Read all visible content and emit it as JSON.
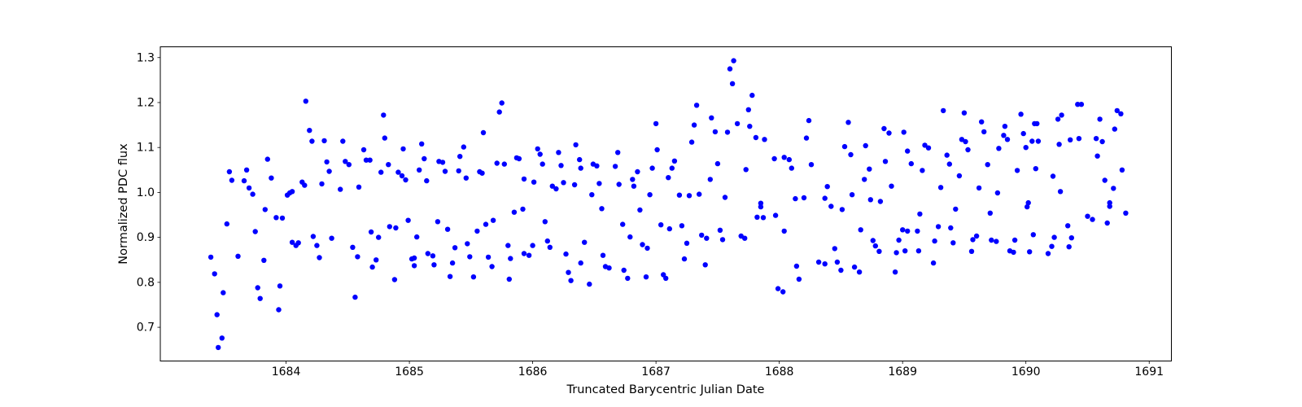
{
  "chart_data": {
    "type": "scatter",
    "title": "",
    "xlabel": "Truncated Barycentric Julian Date",
    "ylabel": "Normalized PDC flux",
    "xlim": [
      1682.98,
      1691.18
    ],
    "ylim": [
      0.625,
      1.324
    ],
    "x_ticks": [
      1684,
      1685,
      1686,
      1687,
      1688,
      1689,
      1690,
      1691
    ],
    "y_ticks": [
      0.7,
      0.8,
      0.9,
      1.0,
      1.1,
      1.2,
      1.3
    ],
    "grid": false,
    "legend": "none",
    "marker_color": "#0000ff",
    "marker_radius": 3.2,
    "points": [
      [
        1683.54,
        1.046
      ],
      [
        1683.56,
        1.027
      ],
      [
        1683.66,
        1.026
      ],
      [
        1683.68,
        1.05
      ],
      [
        1683.7,
        1.01
      ],
      [
        1683.73,
        0.996
      ],
      [
        1683.85,
        1.074
      ],
      [
        1683.88,
        1.032
      ],
      [
        1684.01,
        0.994
      ],
      [
        1684.03,
        0.999
      ],
      [
        1684.05,
        1.002
      ],
      [
        1684.13,
        1.023
      ],
      [
        1684.15,
        1.016
      ],
      [
        1684.16,
        1.203
      ],
      [
        1684.19,
        1.138
      ],
      [
        1684.21,
        1.114
      ],
      [
        1684.29,
        1.019
      ],
      [
        1684.31,
        1.115
      ],
      [
        1684.33,
        1.068
      ],
      [
        1684.35,
        1.047
      ],
      [
        1684.44,
        1.007
      ],
      [
        1684.46,
        1.114
      ],
      [
        1684.48,
        1.069
      ],
      [
        1684.51,
        1.062
      ],
      [
        1684.59,
        1.012
      ],
      [
        1684.63,
        1.095
      ],
      [
        1684.65,
        1.072
      ],
      [
        1684.68,
        1.072
      ],
      [
        1684.77,
        1.045
      ],
      [
        1684.79,
        1.172
      ],
      [
        1684.8,
        1.121
      ],
      [
        1684.83,
        1.062
      ],
      [
        1684.91,
        1.045
      ],
      [
        1684.94,
        1.037
      ],
      [
        1684.95,
        1.097
      ],
      [
        1684.97,
        1.028
      ],
      [
        1683.39,
        0.856
      ],
      [
        1683.42,
        0.819
      ],
      [
        1683.44,
        0.728
      ],
      [
        1683.45,
        0.655
      ],
      [
        1683.48,
        0.676
      ],
      [
        1683.49,
        0.777
      ],
      [
        1683.52,
        0.93
      ],
      [
        1683.61,
        0.858
      ],
      [
        1683.75,
        0.913
      ],
      [
        1683.77,
        0.788
      ],
      [
        1683.79,
        0.764
      ],
      [
        1683.82,
        0.849
      ],
      [
        1683.83,
        0.962
      ],
      [
        1683.92,
        0.944
      ],
      [
        1683.94,
        0.739
      ],
      [
        1683.95,
        0.792
      ],
      [
        1683.97,
        0.943
      ],
      [
        1684.05,
        0.889
      ],
      [
        1684.08,
        0.882
      ],
      [
        1684.1,
        0.888
      ],
      [
        1684.22,
        0.902
      ],
      [
        1684.25,
        0.882
      ],
      [
        1684.27,
        0.855
      ],
      [
        1684.37,
        0.898
      ],
      [
        1684.54,
        0.878
      ],
      [
        1684.56,
        0.767
      ],
      [
        1684.58,
        0.857
      ],
      [
        1684.69,
        0.912
      ],
      [
        1684.7,
        0.834
      ],
      [
        1684.73,
        0.85
      ],
      [
        1684.75,
        0.9
      ],
      [
        1684.84,
        0.924
      ],
      [
        1684.88,
        0.806
      ],
      [
        1684.89,
        0.921
      ],
      [
        1684.99,
        0.938
      ],
      [
        1685.02,
        0.852
      ],
      [
        1685.04,
        0.837
      ],
      [
        1685.08,
        1.05
      ],
      [
        1685.1,
        1.108
      ],
      [
        1685.12,
        1.075
      ],
      [
        1685.14,
        1.026
      ],
      [
        1685.24,
        1.069
      ],
      [
        1685.27,
        1.067
      ],
      [
        1685.29,
        1.047
      ],
      [
        1685.4,
        1.048
      ],
      [
        1685.41,
        1.08
      ],
      [
        1685.44,
        1.101
      ],
      [
        1685.46,
        1.032
      ],
      [
        1685.57,
        1.046
      ],
      [
        1685.59,
        1.043
      ],
      [
        1685.6,
        1.133
      ],
      [
        1685.71,
        1.065
      ],
      [
        1685.73,
        1.179
      ],
      [
        1685.75,
        1.199
      ],
      [
        1685.77,
        1.063
      ],
      [
        1685.87,
        1.077
      ],
      [
        1685.89,
        1.075
      ],
      [
        1685.93,
        1.03
      ],
      [
        1686.01,
        1.023
      ],
      [
        1686.04,
        1.097
      ],
      [
        1686.06,
        1.085
      ],
      [
        1686.08,
        1.063
      ],
      [
        1686.16,
        1.014
      ],
      [
        1686.19,
        1.008
      ],
      [
        1686.21,
        1.089
      ],
      [
        1686.23,
        1.06
      ],
      [
        1686.25,
        1.022
      ],
      [
        1686.34,
        1.017
      ],
      [
        1686.35,
        1.106
      ],
      [
        1686.38,
        1.073
      ],
      [
        1686.39,
        1.054
      ],
      [
        1686.48,
        0.995
      ],
      [
        1686.49,
        1.063
      ],
      [
        1686.52,
        1.059
      ],
      [
        1686.54,
        1.02
      ],
      [
        1686.67,
        1.058
      ],
      [
        1686.69,
        1.089
      ],
      [
        1686.7,
        1.018
      ],
      [
        1686.81,
        1.029
      ],
      [
        1686.82,
        1.014
      ],
      [
        1686.85,
        1.046
      ],
      [
        1686.95,
        0.995
      ],
      [
        1686.97,
        1.054
      ],
      [
        1687.0,
        1.153
      ],
      [
        1687.01,
        1.095
      ],
      [
        1685.04,
        0.854
      ],
      [
        1685.06,
        0.901
      ],
      [
        1685.15,
        0.864
      ],
      [
        1685.19,
        0.859
      ],
      [
        1685.2,
        0.839
      ],
      [
        1685.23,
        0.935
      ],
      [
        1685.31,
        0.918
      ],
      [
        1685.33,
        0.813
      ],
      [
        1685.35,
        0.843
      ],
      [
        1685.37,
        0.877
      ],
      [
        1685.47,
        0.886
      ],
      [
        1685.49,
        0.857
      ],
      [
        1685.52,
        0.812
      ],
      [
        1685.55,
        0.914
      ],
      [
        1685.62,
        0.929
      ],
      [
        1685.64,
        0.856
      ],
      [
        1685.67,
        0.835
      ],
      [
        1685.68,
        0.938
      ],
      [
        1685.8,
        0.882
      ],
      [
        1685.81,
        0.807
      ],
      [
        1685.82,
        0.853
      ],
      [
        1685.85,
        0.956
      ],
      [
        1685.92,
        0.963
      ],
      [
        1685.93,
        0.864
      ],
      [
        1685.97,
        0.86
      ],
      [
        1686.0,
        0.882
      ],
      [
        1686.1,
        0.935
      ],
      [
        1686.12,
        0.892
      ],
      [
        1686.14,
        0.878
      ],
      [
        1686.27,
        0.863
      ],
      [
        1686.29,
        0.822
      ],
      [
        1686.31,
        0.804
      ],
      [
        1686.39,
        0.843
      ],
      [
        1686.42,
        0.889
      ],
      [
        1686.46,
        0.796
      ],
      [
        1686.56,
        0.964
      ],
      [
        1686.57,
        0.86
      ],
      [
        1686.59,
        0.835
      ],
      [
        1686.62,
        0.832
      ],
      [
        1686.73,
        0.929
      ],
      [
        1686.74,
        0.827
      ],
      [
        1686.77,
        0.809
      ],
      [
        1686.79,
        0.901
      ],
      [
        1686.87,
        0.961
      ],
      [
        1686.89,
        0.884
      ],
      [
        1686.92,
        0.812
      ],
      [
        1686.93,
        0.876
      ],
      [
        1687.04,
        0.928
      ],
      [
        1687.06,
        0.817
      ],
      [
        1687.1,
        1.033
      ],
      [
        1687.13,
        1.054
      ],
      [
        1687.15,
        1.07
      ],
      [
        1687.19,
        0.994
      ],
      [
        1687.27,
        0.993
      ],
      [
        1687.29,
        1.112
      ],
      [
        1687.31,
        1.15
      ],
      [
        1687.33,
        1.194
      ],
      [
        1687.35,
        0.996
      ],
      [
        1687.44,
        1.029
      ],
      [
        1687.45,
        1.166
      ],
      [
        1687.48,
        1.135
      ],
      [
        1687.5,
        1.064
      ],
      [
        1687.56,
        0.989
      ],
      [
        1687.58,
        1.134
      ],
      [
        1687.6,
        1.275
      ],
      [
        1687.62,
        1.242
      ],
      [
        1687.63,
        1.293
      ],
      [
        1687.66,
        1.153
      ],
      [
        1687.73,
        1.051
      ],
      [
        1687.75,
        1.184
      ],
      [
        1687.76,
        1.147
      ],
      [
        1687.78,
        1.216
      ],
      [
        1687.81,
        1.122
      ],
      [
        1687.85,
        0.976
      ],
      [
        1687.88,
        1.118
      ],
      [
        1687.96,
        1.075
      ],
      [
        1688.04,
        1.078
      ],
      [
        1688.08,
        1.073
      ],
      [
        1688.1,
        1.054
      ],
      [
        1688.13,
        0.986
      ],
      [
        1688.2,
        0.988
      ],
      [
        1688.22,
        1.121
      ],
      [
        1688.24,
        1.16
      ],
      [
        1688.26,
        1.062
      ],
      [
        1688.37,
        0.987
      ],
      [
        1688.39,
        1.013
      ],
      [
        1688.53,
        1.102
      ],
      [
        1688.56,
        1.156
      ],
      [
        1688.58,
        1.084
      ],
      [
        1688.59,
        0.995
      ],
      [
        1688.69,
        1.029
      ],
      [
        1688.7,
        1.104
      ],
      [
        1688.73,
        1.052
      ],
      [
        1688.74,
        0.984
      ],
      [
        1688.82,
        0.98
      ],
      [
        1688.85,
        1.142
      ],
      [
        1688.86,
        1.069
      ],
      [
        1688.89,
        1.132
      ],
      [
        1688.91,
        1.014
      ],
      [
        1689.01,
        1.134
      ],
      [
        1689.04,
        1.092
      ],
      [
        1689.07,
        1.064
      ],
      [
        1687.08,
        0.809
      ],
      [
        1687.11,
        0.919
      ],
      [
        1687.21,
        0.926
      ],
      [
        1687.23,
        0.852
      ],
      [
        1687.25,
        0.887
      ],
      [
        1687.37,
        0.905
      ],
      [
        1687.4,
        0.839
      ],
      [
        1687.41,
        0.898
      ],
      [
        1687.52,
        0.916
      ],
      [
        1687.54,
        0.895
      ],
      [
        1687.69,
        0.903
      ],
      [
        1687.72,
        0.898
      ],
      [
        1687.82,
        0.945
      ],
      [
        1687.85,
        0.968
      ],
      [
        1687.87,
        0.944
      ],
      [
        1687.97,
        0.949
      ],
      [
        1687.99,
        0.786
      ],
      [
        1688.03,
        0.779
      ],
      [
        1688.04,
        0.914
      ],
      [
        1688.14,
        0.836
      ],
      [
        1688.16,
        0.807
      ],
      [
        1688.32,
        0.845
      ],
      [
        1688.37,
        0.841
      ],
      [
        1688.42,
        0.969
      ],
      [
        1688.45,
        0.875
      ],
      [
        1688.47,
        0.845
      ],
      [
        1688.5,
        0.827
      ],
      [
        1688.51,
        0.962
      ],
      [
        1688.61,
        0.834
      ],
      [
        1688.65,
        0.823
      ],
      [
        1688.66,
        0.917
      ],
      [
        1688.76,
        0.893
      ],
      [
        1688.78,
        0.881
      ],
      [
        1688.81,
        0.869
      ],
      [
        1688.94,
        0.823
      ],
      [
        1688.95,
        0.866
      ],
      [
        1688.97,
        0.894
      ],
      [
        1689.0,
        0.917
      ],
      [
        1689.02,
        0.87
      ],
      [
        1689.04,
        0.914
      ],
      [
        1689.16,
        1.049
      ],
      [
        1689.18,
        1.105
      ],
      [
        1689.21,
        1.099
      ],
      [
        1689.31,
        1.011
      ],
      [
        1689.33,
        1.182
      ],
      [
        1689.36,
        1.083
      ],
      [
        1689.38,
        1.063
      ],
      [
        1689.46,
        1.037
      ],
      [
        1689.48,
        1.118
      ],
      [
        1689.5,
        1.177
      ],
      [
        1689.51,
        1.113
      ],
      [
        1689.53,
        1.095
      ],
      [
        1689.62,
        1.01
      ],
      [
        1689.64,
        1.157
      ],
      [
        1689.66,
        1.135
      ],
      [
        1689.69,
        1.062
      ],
      [
        1689.77,
        0.999
      ],
      [
        1689.78,
        1.098
      ],
      [
        1689.82,
        1.127
      ],
      [
        1689.83,
        1.147
      ],
      [
        1689.85,
        1.118
      ],
      [
        1689.93,
        1.049
      ],
      [
        1689.96,
        1.174
      ],
      [
        1689.98,
        1.131
      ],
      [
        1690.0,
        1.1
      ],
      [
        1690.02,
        0.977
      ],
      [
        1690.05,
        1.114
      ],
      [
        1690.07,
        1.153
      ],
      [
        1690.09,
        1.153
      ],
      [
        1690.08,
        1.053
      ],
      [
        1690.1,
        1.114
      ],
      [
        1690.22,
        1.036
      ],
      [
        1690.26,
        1.163
      ],
      [
        1690.27,
        1.107
      ],
      [
        1690.28,
        1.002
      ],
      [
        1690.29,
        1.172
      ],
      [
        1690.36,
        1.117
      ],
      [
        1690.42,
        1.196
      ],
      [
        1690.45,
        1.196
      ],
      [
        1690.43,
        1.12
      ],
      [
        1690.57,
        1.12
      ],
      [
        1690.62,
        1.113
      ],
      [
        1690.58,
        1.081
      ],
      [
        1690.6,
        1.163
      ],
      [
        1690.64,
        1.027
      ],
      [
        1690.68,
        0.977
      ],
      [
        1690.71,
        1.009
      ],
      [
        1690.72,
        1.141
      ],
      [
        1690.74,
        1.182
      ],
      [
        1690.77,
        1.175
      ],
      [
        1690.78,
        1.05
      ],
      [
        1689.12,
        0.914
      ],
      [
        1689.13,
        0.87
      ],
      [
        1689.14,
        0.952
      ],
      [
        1689.25,
        0.843
      ],
      [
        1689.26,
        0.892
      ],
      [
        1689.29,
        0.924
      ],
      [
        1689.39,
        0.921
      ],
      [
        1689.41,
        0.888
      ],
      [
        1689.43,
        0.963
      ],
      [
        1689.56,
        0.869
      ],
      [
        1689.57,
        0.895
      ],
      [
        1689.6,
        0.903
      ],
      [
        1689.71,
        0.954
      ],
      [
        1689.72,
        0.894
      ],
      [
        1689.76,
        0.891
      ],
      [
        1689.87,
        0.87
      ],
      [
        1689.9,
        0.867
      ],
      [
        1689.91,
        0.894
      ],
      [
        1690.01,
        0.968
      ],
      [
        1690.03,
        0.868
      ],
      [
        1690.06,
        0.906
      ],
      [
        1690.18,
        0.864
      ],
      [
        1690.21,
        0.88
      ],
      [
        1690.23,
        0.9
      ],
      [
        1690.34,
        0.926
      ],
      [
        1690.35,
        0.879
      ],
      [
        1690.37,
        0.899
      ],
      [
        1690.5,
        0.947
      ],
      [
        1690.54,
        0.94
      ],
      [
        1690.66,
        0.932
      ],
      [
        1690.68,
        0.969
      ],
      [
        1690.81,
        0.954
      ]
    ]
  }
}
